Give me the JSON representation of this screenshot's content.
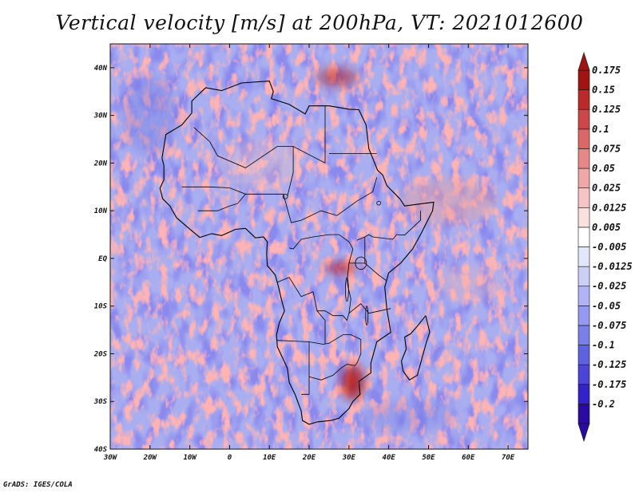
{
  "title": "Vertical velocity [m/s] at 200hPa, VT: 2021012600",
  "credit": "GrADS: IGES/COLA",
  "map": {
    "lon_range": [
      -30,
      75
    ],
    "lat_range": [
      -40,
      45
    ],
    "x_ticks": [
      {
        "lon": -30,
        "label": "30W"
      },
      {
        "lon": -20,
        "label": "20W"
      },
      {
        "lon": -10,
        "label": "10W"
      },
      {
        "lon": 0,
        "label": "0"
      },
      {
        "lon": 10,
        "label": "10E"
      },
      {
        "lon": 20,
        "label": "20E"
      },
      {
        "lon": 30,
        "label": "30E"
      },
      {
        "lon": 40,
        "label": "40E"
      },
      {
        "lon": 50,
        "label": "50E"
      },
      {
        "lon": 60,
        "label": "60E"
      },
      {
        "lon": 70,
        "label": "70E"
      }
    ],
    "y_ticks": [
      {
        "lat": 40,
        "label": "40N"
      },
      {
        "lat": 30,
        "label": "30N"
      },
      {
        "lat": 20,
        "label": "20N"
      },
      {
        "lat": 10,
        "label": "10N"
      },
      {
        "lat": 0,
        "label": "EQ"
      },
      {
        "lat": -10,
        "label": "10S"
      },
      {
        "lat": -20,
        "label": "20S"
      },
      {
        "lat": -30,
        "label": "30S"
      },
      {
        "lat": -40,
        "label": "40S"
      }
    ],
    "coastline": [
      [
        -17,
        21
      ],
      [
        -16,
        26
      ],
      [
        -12,
        28
      ],
      [
        -9.5,
        30.5
      ],
      [
        -9.5,
        33
      ],
      [
        -6,
        35.8
      ],
      [
        -2,
        35.2
      ],
      [
        3,
        36.8
      ],
      [
        10,
        37.2
      ],
      [
        11,
        35
      ],
      [
        10.5,
        33.5
      ],
      [
        15,
        32.3
      ],
      [
        19,
        30.3
      ],
      [
        20,
        32
      ],
      [
        25,
        32
      ],
      [
        30,
        31.3
      ],
      [
        32.5,
        31.2
      ],
      [
        34.3,
        28
      ],
      [
        35,
        23
      ],
      [
        37.2,
        18.5
      ],
      [
        38.5,
        17.5
      ],
      [
        39.5,
        15.3
      ],
      [
        42.8,
        12.5
      ],
      [
        44,
        11
      ],
      [
        51.3,
        11.8
      ],
      [
        51,
        10
      ],
      [
        48,
        5
      ],
      [
        46,
        2
      ],
      [
        43,
        -1
      ],
      [
        40,
        -3
      ],
      [
        39,
        -6
      ],
      [
        39.5,
        -10.5
      ],
      [
        40.5,
        -15.5
      ],
      [
        37,
        -17.5
      ],
      [
        35.5,
        -22
      ],
      [
        35.5,
        -24
      ],
      [
        32.5,
        -25.8
      ],
      [
        32.8,
        -28.5
      ],
      [
        31,
        -30
      ],
      [
        30,
        -31.5
      ],
      [
        27.5,
        -33.5
      ],
      [
        25.5,
        -34
      ],
      [
        22,
        -34.3
      ],
      [
        20,
        -34.8
      ],
      [
        18.3,
        -34
      ],
      [
        18,
        -32
      ],
      [
        16.5,
        -28.6
      ],
      [
        15,
        -26
      ],
      [
        14.5,
        -23
      ],
      [
        12,
        -18.5
      ],
      [
        11.8,
        -16
      ],
      [
        12.5,
        -13.5
      ],
      [
        13.8,
        -11
      ],
      [
        13,
        -8.5
      ],
      [
        12.3,
        -6
      ],
      [
        11.5,
        -3.5
      ],
      [
        9.5,
        -1.5
      ],
      [
        9.3,
        1
      ],
      [
        9.5,
        3.5
      ],
      [
        8.5,
        4.5
      ],
      [
        6.5,
        4.3
      ],
      [
        4,
        6.3
      ],
      [
        1.5,
        6.1
      ],
      [
        -2,
        4.8
      ],
      [
        -4.5,
        5.2
      ],
      [
        -7.5,
        4.4
      ],
      [
        -10.5,
        6.5
      ],
      [
        -13.3,
        8.5
      ],
      [
        -15,
        11
      ],
      [
        -16.8,
        12.5
      ],
      [
        -17.5,
        14.7
      ],
      [
        -16.5,
        16.5
      ],
      [
        -16.5,
        19.5
      ],
      [
        -17,
        21
      ]
    ],
    "madagascar": [
      [
        49.3,
        -12
      ],
      [
        50.3,
        -15.5
      ],
      [
        49.5,
        -17.5
      ],
      [
        48.5,
        -20.5
      ],
      [
        47.2,
        -24.5
      ],
      [
        45.2,
        -25.5
      ],
      [
        43.6,
        -23.6
      ],
      [
        43.2,
        -21.5
      ],
      [
        44.4,
        -19
      ],
      [
        44,
        -16.5
      ],
      [
        45.5,
        -15.8
      ],
      [
        47.2,
        -14.2
      ],
      [
        49.3,
        -12
      ]
    ],
    "borders": [
      [
        [
          -9,
          27.5
        ],
        [
          -5,
          24.5
        ],
        [
          -3,
          21.5
        ],
        [
          4,
          19
        ],
        [
          12,
          23.5
        ],
        [
          16,
          23.5
        ],
        [
          24,
          20
        ],
        [
          24,
          22
        ],
        [
          24,
          32
        ]
      ],
      [
        [
          25,
          22
        ],
        [
          37,
          22
        ]
      ],
      [
        [
          -12,
          15
        ],
        [
          -5,
          15
        ],
        [
          0,
          14.8
        ],
        [
          4,
          13.5
        ],
        [
          13.5,
          13.5
        ],
        [
          15.5,
          7.5
        ],
        [
          18,
          8
        ],
        [
          23,
          10
        ],
        [
          27,
          9
        ],
        [
          32,
          12
        ],
        [
          36,
          14
        ],
        [
          37,
          17
        ]
      ],
      [
        [
          14.5,
          13
        ],
        [
          16,
          18
        ],
        [
          16,
          23.5
        ]
      ],
      [
        [
          -8,
          10
        ],
        [
          -3,
          10
        ],
        [
          0,
          11
        ],
        [
          2,
          11.5
        ],
        [
          4,
          13.5
        ]
      ],
      [
        [
          15,
          2.2
        ],
        [
          16,
          2
        ],
        [
          18,
          4
        ],
        [
          21,
          4.5
        ],
        [
          25,
          5
        ],
        [
          27.5,
          5
        ],
        [
          30,
          3.5
        ],
        [
          31,
          2
        ],
        [
          30,
          -1
        ],
        [
          29.5,
          -5
        ]
      ],
      [
        [
          32,
          3.8
        ],
        [
          34,
          4.5
        ],
        [
          35,
          5
        ],
        [
          36,
          4.5
        ],
        [
          41,
          4
        ],
        [
          42,
          5
        ],
        [
          44,
          4.9
        ],
        [
          48,
          8
        ],
        [
          48,
          10
        ]
      ],
      [
        [
          34,
          4.5
        ],
        [
          34,
          1
        ],
        [
          34,
          -1
        ],
        [
          37.5,
          -3.5
        ],
        [
          39.3,
          -4.6
        ]
      ],
      [
        [
          30,
          -1
        ],
        [
          33,
          -1
        ],
        [
          34,
          -1
        ]
      ],
      [
        [
          29.5,
          -5
        ],
        [
          30.5,
          -8.5
        ],
        [
          30,
          -11.5
        ],
        [
          33,
          -9.5
        ],
        [
          35,
          -11.5
        ],
        [
          40.5,
          -10.5
        ]
      ],
      [
        [
          12,
          -5
        ],
        [
          15,
          -4
        ],
        [
          16.5,
          -6
        ],
        [
          18,
          -8
        ],
        [
          21,
          -7
        ],
        [
          22,
          -11
        ],
        [
          24,
          -11
        ],
        [
          26,
          -12
        ],
        [
          28.5,
          -12
        ],
        [
          29.5,
          -13
        ],
        [
          30,
          -11.5
        ]
      ],
      [
        [
          12,
          -17.2
        ],
        [
          20,
          -17.5
        ],
        [
          23.5,
          -18
        ],
        [
          25,
          -17.8
        ],
        [
          28.5,
          -16
        ],
        [
          30.5,
          -16
        ],
        [
          33,
          -17
        ],
        [
          33,
          -20
        ],
        [
          32,
          -22
        ],
        [
          31.5,
          -22.5
        ]
      ],
      [
        [
          20,
          -17.5
        ],
        [
          20,
          -22
        ],
        [
          20,
          -24.8
        ],
        [
          20,
          -28.5
        ],
        [
          18,
          -28.5
        ]
      ],
      [
        [
          20,
          -24.8
        ],
        [
          23,
          -25.5
        ],
        [
          26,
          -24.5
        ],
        [
          28,
          -23
        ],
        [
          29.5,
          -22.2
        ],
        [
          31.5,
          -22.5
        ]
      ],
      [
        [
          22,
          -11
        ],
        [
          24,
          -13
        ],
        [
          24,
          -18
        ]
      ]
    ],
    "lakes": [
      {
        "lon": 33,
        "lat": -1,
        "r_lon": 1.4,
        "r_lat": 1.3
      },
      {
        "lon": 29.5,
        "lat": -6.5,
        "r_lon": 0.4,
        "r_lat": 2.5
      },
      {
        "lon": 34.5,
        "lat": -12,
        "r_lon": 0.3,
        "r_lat": 2
      },
      {
        "lon": 37.5,
        "lat": 11.6,
        "r_lon": 0.5,
        "r_lat": 0.4
      },
      {
        "lon": 14,
        "lat": 13,
        "r_lon": 0.6,
        "r_lat": 0.5
      }
    ]
  },
  "colorbar": {
    "colors": [
      "#2a0aa0",
      "#3322c8",
      "#4a44d8",
      "#5f62e0",
      "#7a80e8",
      "#959af0",
      "#b0b4f4",
      "#cccff8",
      "#e4e6fc",
      "#ffffff",
      "#fbe0e0",
      "#f6c4c4",
      "#efa8a8",
      "#e68888",
      "#da6868",
      "#cc4848",
      "#bb2a2a",
      "#a01414"
    ],
    "labels": [
      "-0.2",
      "-0.175",
      "-0.125",
      "-0.1",
      "-0.075",
      "-0.05",
      "-0.025",
      "-0.0125",
      "-0.005",
      "0.005",
      "0.0125",
      "0.025",
      "0.05",
      "0.075",
      "0.1",
      "0.125",
      "0.15",
      "0.175"
    ]
  }
}
